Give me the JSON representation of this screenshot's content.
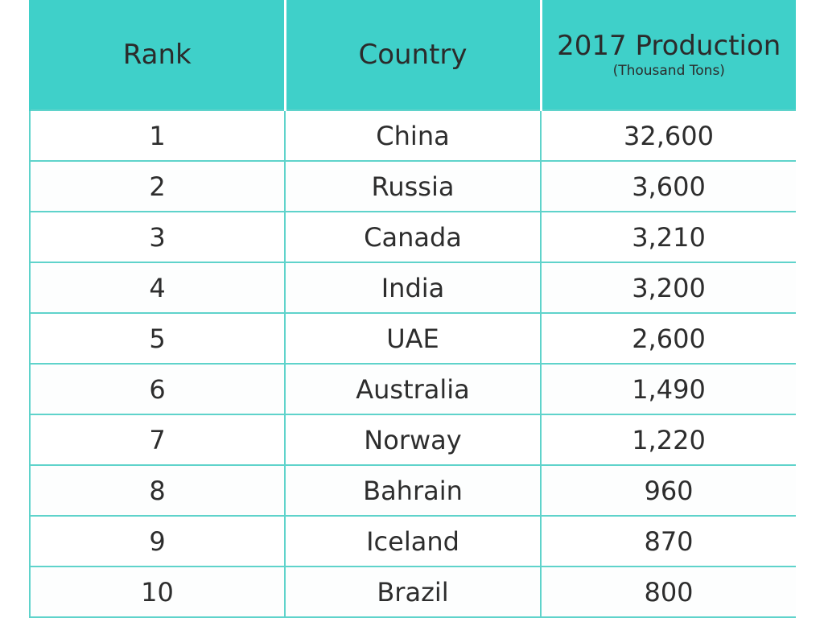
{
  "table": {
    "headers": {
      "rank": "Rank",
      "country": "Country",
      "production": "2017 Production",
      "production_unit": "(Thousand Tons)"
    },
    "rows": [
      {
        "rank": "1",
        "country": "China",
        "production": "32,600"
      },
      {
        "rank": "2",
        "country": "Russia",
        "production": "3,600"
      },
      {
        "rank": "3",
        "country": "Canada",
        "production": "3,210"
      },
      {
        "rank": "4",
        "country": "India",
        "production": "3,200"
      },
      {
        "rank": "5",
        "country": "UAE",
        "production": "2,600"
      },
      {
        "rank": "6",
        "country": "Australia",
        "production": "1,490"
      },
      {
        "rank": "7",
        "country": "Norway",
        "production": "1,220"
      },
      {
        "rank": "8",
        "country": "Bahrain",
        "production": "960"
      },
      {
        "rank": "9",
        "country": "Iceland",
        "production": "870"
      },
      {
        "rank": "10",
        "country": "Brazil",
        "production": "800"
      }
    ]
  },
  "colors": {
    "header_background": "#3fd0c9",
    "grid_lines": "#5fd3cb"
  }
}
